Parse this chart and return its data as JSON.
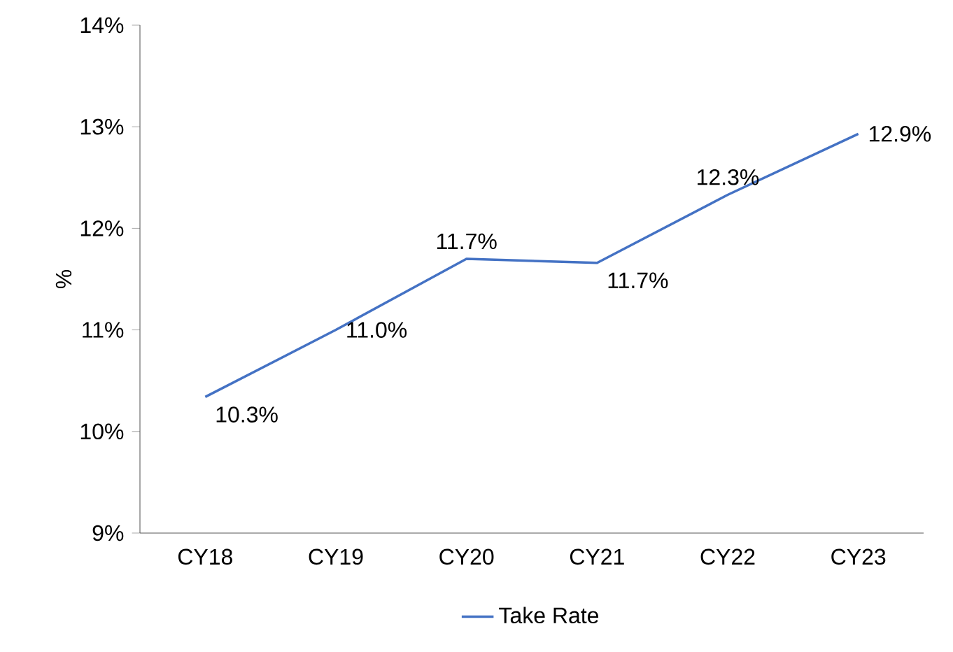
{
  "chart_data": {
    "type": "line",
    "ylabel": "%",
    "categories": [
      "CY18",
      "CY19",
      "CY20",
      "CY21",
      "CY22",
      "CY23"
    ],
    "series": [
      {
        "name": "Take Rate",
        "color": "#4472c4",
        "values": [
          10.34,
          11.0,
          11.7,
          11.66,
          12.33,
          12.93
        ],
        "value_labels": [
          "10.3%",
          "11.0%",
          "11.7%",
          "11.7%",
          "12.3%",
          "12.9%"
        ]
      }
    ],
    "ylim": [
      9,
      14
    ],
    "yticks": [
      {
        "value": 9,
        "label": "9%"
      },
      {
        "value": 10,
        "label": "10%"
      },
      {
        "value": 11,
        "label": "11%"
      },
      {
        "value": 12,
        "label": "12%"
      },
      {
        "value": 13,
        "label": "13%"
      },
      {
        "value": 14,
        "label": "14%"
      }
    ],
    "grid": false,
    "legend": "bottom",
    "marker": "none",
    "line_style": "solid"
  }
}
